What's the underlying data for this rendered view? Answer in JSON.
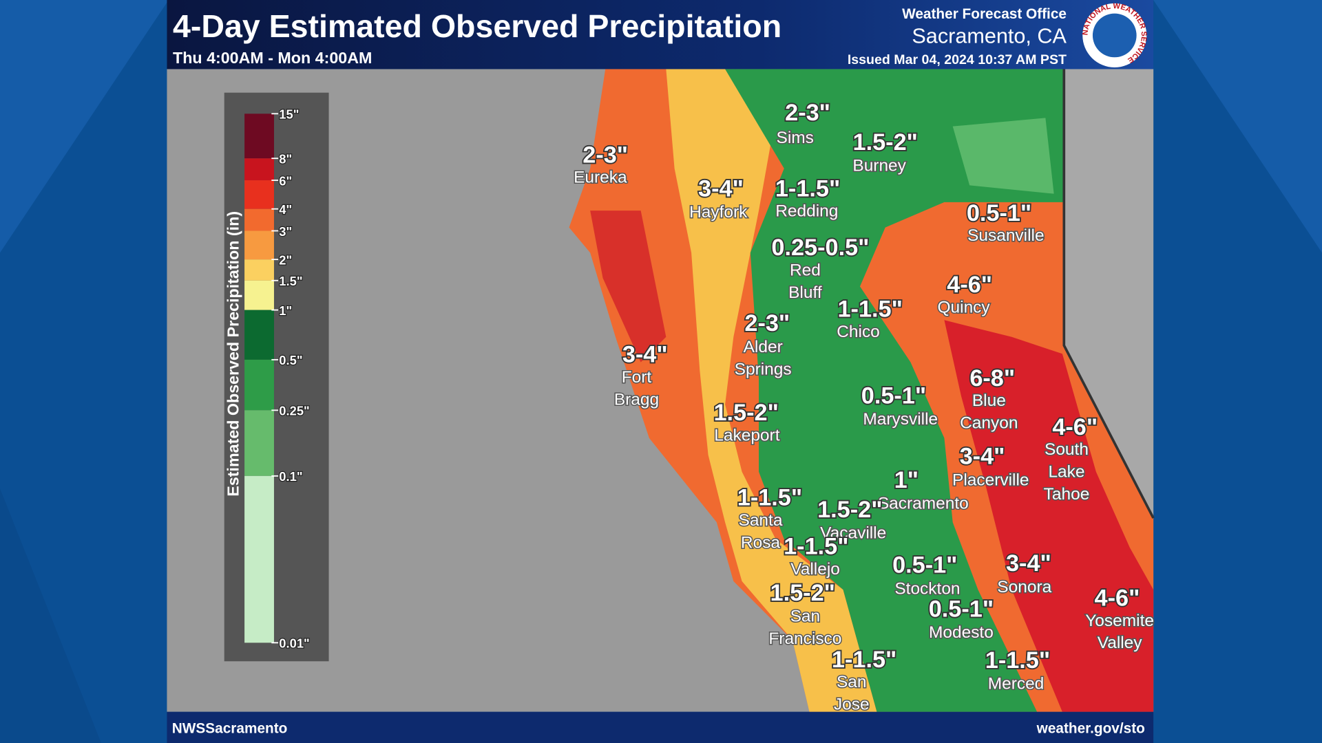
{
  "header": {
    "title": "4-Day Estimated Observed Precipitation",
    "subtitle": "Thu 4:00AM - Mon 4:00AM",
    "office": "Weather Forecast Office",
    "location": "Sacramento, CA",
    "issued": "Issued Mar 04, 2024 10:37 AM PST",
    "logo_text": "NATIONAL WEATHER SERVICE"
  },
  "legend": {
    "title": "Estimated Observed Precipitation (in)",
    "ticks": [
      "15\"",
      "8\"",
      "6\"",
      "4\"",
      "3\"",
      "2\"",
      "1.5\"",
      "1\"",
      "0.5\"",
      "0.25\"",
      "0.1\"",
      "0.01\""
    ],
    "colors": [
      "#6e0a22",
      "#c8141e",
      "#e8301e",
      "#f26a2e",
      "#f79a40",
      "#fbd060",
      "#f6f290",
      "#0c6a30",
      "#2e9c48",
      "#66bb6c",
      "#c6ecc6"
    ]
  },
  "labels": [
    {
      "amount": "2-3\"",
      "city": [
        "Eureka"
      ]
    },
    {
      "amount": "2-3\"",
      "city": [
        "Sims"
      ]
    },
    {
      "amount": "1.5-2\"",
      "city": [
        "Burney"
      ]
    },
    {
      "amount": "3-4\"",
      "city": [
        "Hayfork"
      ]
    },
    {
      "amount": "1-1.5\"",
      "city": [
        "Redding"
      ]
    },
    {
      "amount": "0.5-1\"",
      "city": [
        "Susanville"
      ]
    },
    {
      "amount": "0.25-0.5\"",
      "city": [
        "Red",
        "Bluff"
      ]
    },
    {
      "amount": "4-6\"",
      "city": [
        "Quincy"
      ]
    },
    {
      "amount": "1-1.5\"",
      "city": [
        "Chico"
      ]
    },
    {
      "amount": "2-3\"",
      "city": [
        "Alder",
        "Springs"
      ]
    },
    {
      "amount": "3-4\"",
      "city": [
        "Fort",
        "Bragg"
      ]
    },
    {
      "amount": "6-8\"",
      "city": [
        "Blue",
        "Canyon"
      ]
    },
    {
      "amount": "0.5-1\"",
      "city": [
        "Marysville"
      ]
    },
    {
      "amount": "4-6\"",
      "city": [
        "South",
        "Lake",
        "Tahoe"
      ]
    },
    {
      "amount": "1.5-2\"",
      "city": [
        "Lakeport"
      ]
    },
    {
      "amount": "3-4\"",
      "city": [
        "Placerville"
      ]
    },
    {
      "amount": "1\"",
      "city": [
        "Sacramento"
      ]
    },
    {
      "amount": "1-1.5\"",
      "city": [
        "Santa",
        "Rosa"
      ]
    },
    {
      "amount": "1.5-2\"",
      "city": [
        "Vacaville"
      ]
    },
    {
      "amount": "1-1.5\"",
      "city": [
        "Vallejo"
      ]
    },
    {
      "amount": "0.5-1\"",
      "city": [
        "Stockton"
      ]
    },
    {
      "amount": "3-4\"",
      "city": [
        "Sonora"
      ]
    },
    {
      "amount": "1.5-2\"",
      "city": [
        "San",
        "Francisco"
      ]
    },
    {
      "amount": "4-6\"",
      "city": [
        "Yosemite",
        "Valley"
      ]
    },
    {
      "amount": "0.5-1\"",
      "city": [
        "Modesto"
      ]
    },
    {
      "amount": "1-1.5\"",
      "city": [
        "San",
        "Jose"
      ]
    },
    {
      "amount": "1-1.5\"",
      "city": [
        "Merced"
      ]
    }
  ],
  "footer": {
    "left": "NWSSacramento",
    "right": "weather.gov/sto"
  }
}
